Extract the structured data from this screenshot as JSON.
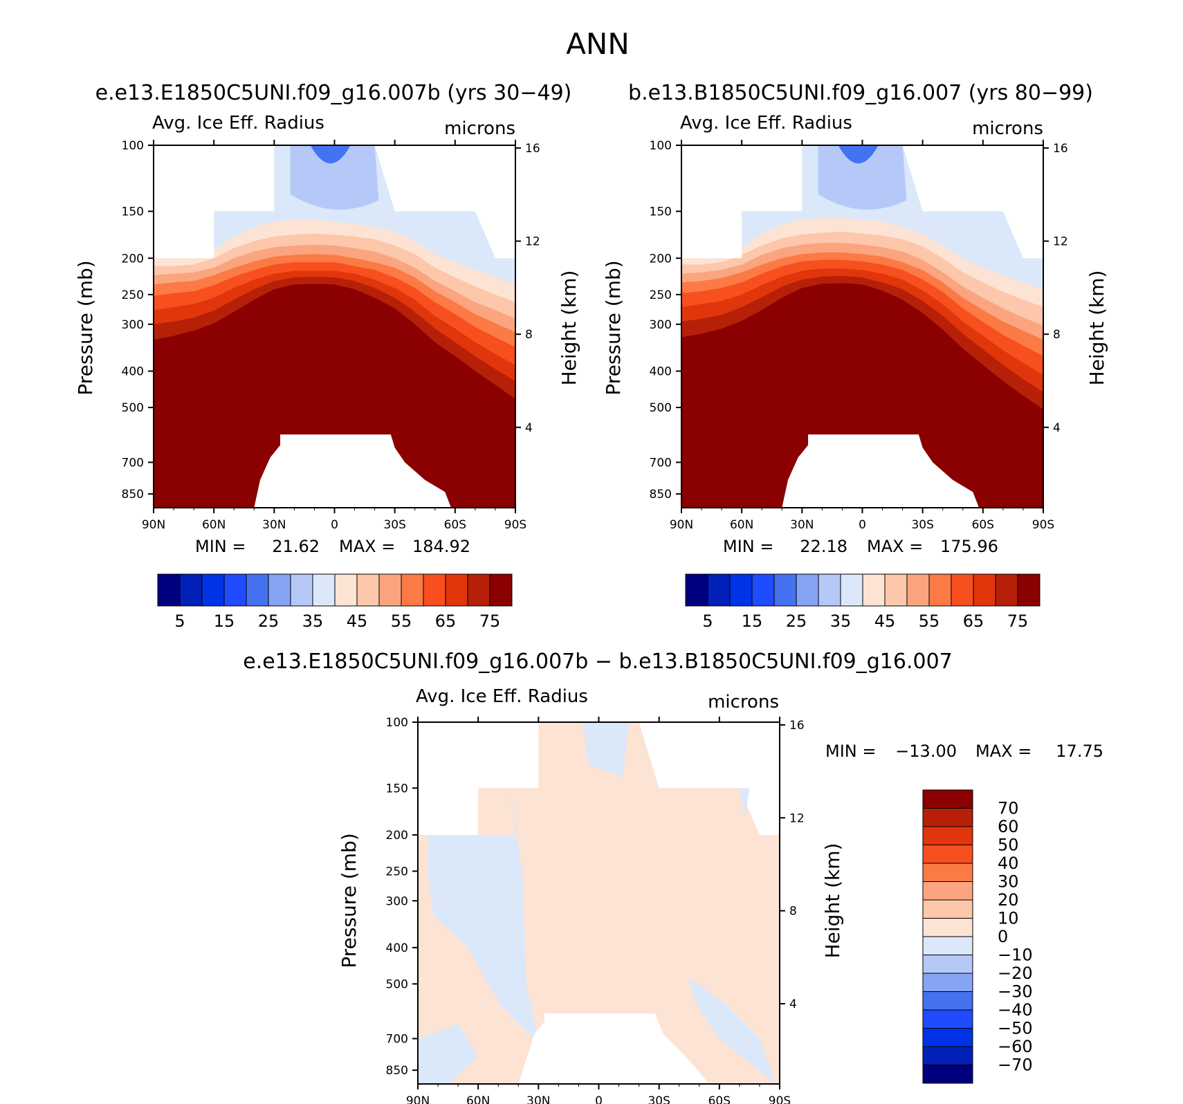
{
  "title": "ANN",
  "colors": {
    "abs_palette": [
      "#00007f",
      "#0020b8",
      "#0033e6",
      "#1f4cff",
      "#4472f0",
      "#85a4f4",
      "#b5c8f8",
      "#dae8fa",
      "#fde3d3",
      "#fcc7ab",
      "#faa580",
      "#fb7a45",
      "#f84f1f",
      "#e1350b",
      "#b62008",
      "#8b0000"
    ],
    "diff_palette": [
      "#00007f",
      "#0020b8",
      "#0033e6",
      "#1f4cff",
      "#4472f0",
      "#85a4f4",
      "#b5c8f8",
      "#dae8fa",
      "#fde3d3",
      "#fcc7ab",
      "#faa580",
      "#fb7a45",
      "#f84f1f",
      "#e1350b",
      "#b62008",
      "#8b0000"
    ]
  },
  "panels": [
    {
      "run_title": "e.e13.E1850C5UNI.f09_g16.007b (yrs 30−49)",
      "left_label": "Avg. Ice Eff. Radius",
      "right_label": "microns",
      "ylabel": "Pressure (mb)",
      "ylabel2": "Height (km)",
      "stats": {
        "min_label": "MIN =",
        "min": "21.62",
        "max_label": "MAX =",
        "max": "184.92"
      }
    },
    {
      "run_title": "b.e13.B1850C5UNI.f09_g16.007 (yrs 80−99)",
      "left_label": "Avg. Ice Eff. Radius",
      "right_label": "microns",
      "ylabel": "Pressure (mb)",
      "ylabel2": "Height (km)",
      "stats": {
        "min_label": "MIN =",
        "min": "22.18",
        "max_label": "MAX =",
        "max": "175.96"
      }
    },
    {
      "run_title": "e.e13.E1850C5UNI.f09_g16.007b − b.e13.B1850C5UNI.f09_g16.007",
      "left_label": "Avg. Ice Eff. Radius",
      "right_label": "microns",
      "ylabel": "Pressure (mb)",
      "ylabel2": "Height (km)",
      "stats": {
        "min_label": "MIN =",
        "min": "−13.00",
        "max_label": "MAX =",
        "max": "17.75"
      }
    }
  ],
  "chart_data": [
    {
      "type": "heatmap",
      "title": "e.e13.E1850C5UNI.f09_g16.007b (yrs 30−49)",
      "variable": "Avg. Ice Eff. Radius",
      "units": "microns",
      "xlabel": "",
      "ylabel": "Pressure (mb)",
      "ylabel_right": "Height (km)",
      "x_ticks": [
        "90N",
        "60N",
        "30N",
        "0",
        "30S",
        "60S",
        "90S"
      ],
      "y_ticks": [
        100,
        150,
        200,
        250,
        300,
        400,
        500,
        700,
        850
      ],
      "y2_ticks": [
        16,
        12,
        8,
        4
      ],
      "min": 21.62,
      "max": 184.92,
      "colorbar_levels": [
        5,
        10,
        15,
        20,
        25,
        30,
        35,
        40,
        45,
        50,
        55,
        60,
        65,
        70,
        75
      ],
      "colorbar_labels": [
        "5",
        "15",
        "25",
        "35",
        "45",
        "55",
        "65",
        "75"
      ],
      "field": {
        "lat": [
          90,
          80,
          70,
          60,
          50,
          40,
          30,
          20,
          10,
          0,
          -10,
          -20,
          -30,
          -40,
          -50,
          -60,
          -70,
          -80,
          -90
        ],
        "top_p": [
          200,
          200,
          200,
          150,
          150,
          150,
          100,
          100,
          100,
          100,
          100,
          100,
          150,
          150,
          150,
          150,
          150,
          200,
          200
        ],
        "isolines_p": [
          {
            "lower": 40,
            "p": [
              200,
              200,
              200,
              190,
              175,
              165,
              160,
              158,
              158,
              160,
              162,
              165,
              170,
              180,
              195,
              205,
              215,
              225,
              235
            ]
          },
          {
            "lower": 45,
            "p": [
              210,
              210,
              208,
              200,
              188,
              180,
              175,
              173,
              172,
              173,
              175,
              178,
              185,
              195,
              212,
              225,
              238,
              250,
              262
            ]
          },
          {
            "lower": 50,
            "p": [
              222,
              220,
              218,
              212,
              200,
              192,
              187,
              185,
              184,
              185,
              188,
              192,
              200,
              212,
              230,
              245,
              262,
              275,
              290
            ]
          },
          {
            "lower": 55,
            "p": [
              235,
              232,
              230,
              222,
              212,
              204,
              198,
              196,
              195,
              196,
              200,
              205,
              212,
              225,
              245,
              262,
              282,
              298,
              315
            ]
          },
          {
            "lower": 60,
            "p": [
              252,
              248,
              245,
              236,
              224,
              215,
              208,
              205,
              205,
              205,
              210,
              215,
              225,
              240,
              262,
              282,
              305,
              325,
              345
            ]
          },
          {
            "lower": 65,
            "p": [
              275,
              270,
              265,
              255,
              240,
              228,
              220,
              216,
              216,
              216,
              220,
              228,
              240,
              258,
              285,
              308,
              335,
              360,
              385
            ]
          },
          {
            "lower": 70,
            "p": [
              300,
              295,
              288,
              276,
              258,
              242,
              230,
              225,
              224,
              225,
              230,
              240,
              255,
              278,
              308,
              335,
              365,
              395,
              425
            ]
          },
          {
            "lower": 75,
            "p": [
              330,
              322,
              312,
              298,
              278,
              258,
              242,
              235,
              234,
              235,
              242,
              255,
              272,
              300,
              335,
              365,
              400,
              435,
              475
            ]
          }
        ],
        "low_clear": {
          "lat_range": [
            -28,
            27
          ],
          "top_p": 590,
          "edge_lats": [
            40,
            37,
            32,
            30,
            -30,
            -35,
            -45,
            -55
          ],
          "edge_p": [
            840,
            780,
            700,
            640,
            640,
            700,
            780,
            840
          ]
        }
      }
    },
    {
      "type": "heatmap",
      "title": "b.e13.B1850C5UNI.f09_g16.007 (yrs 80−99)",
      "variable": "Avg. Ice Eff. Radius",
      "units": "microns",
      "xlabel": "",
      "ylabel": "Pressure (mb)",
      "ylabel_right": "Height (km)",
      "x_ticks": [
        "90N",
        "60N",
        "30N",
        "0",
        "30S",
        "60S",
        "90S"
      ],
      "y_ticks": [
        100,
        150,
        200,
        250,
        300,
        400,
        500,
        700,
        850
      ],
      "y2_ticks": [
        16,
        12,
        8,
        4
      ],
      "min": 22.18,
      "max": 175.96,
      "colorbar_levels": [
        5,
        10,
        15,
        20,
        25,
        30,
        35,
        40,
        45,
        50,
        55,
        60,
        65,
        70,
        75
      ],
      "colorbar_labels": [
        "5",
        "15",
        "25",
        "35",
        "45",
        "55",
        "65",
        "75"
      ],
      "field": {
        "lat": [
          90,
          80,
          70,
          60,
          50,
          40,
          30,
          20,
          10,
          0,
          -10,
          -20,
          -30,
          -40,
          -50,
          -60,
          -70,
          -80,
          -90
        ],
        "top_p": [
          200,
          200,
          200,
          150,
          150,
          150,
          100,
          100,
          100,
          100,
          100,
          100,
          150,
          150,
          150,
          150,
          150,
          200,
          200
        ],
        "isolines_p": [
          {
            "lower": 40,
            "p": [
              200,
              200,
              200,
              188,
              172,
              162,
              158,
              156,
              156,
              158,
              160,
              165,
              172,
              185,
              200,
              212,
              222,
              232,
              242
            ]
          },
          {
            "lower": 45,
            "p": [
              208,
              208,
              205,
              196,
              185,
              177,
              173,
              171,
              170,
              172,
              174,
              178,
              186,
              200,
              218,
              232,
              246,
              258,
              270
            ]
          },
          {
            "lower": 50,
            "p": [
              220,
              218,
              215,
              208,
              196,
              188,
              184,
              182,
              182,
              184,
              187,
              192,
              202,
              218,
              238,
              255,
              272,
              288,
              302
            ]
          },
          {
            "lower": 55,
            "p": [
              232,
              230,
              226,
              218,
              208,
              200,
              195,
              193,
              193,
              195,
              198,
              205,
              215,
              232,
              255,
              275,
              295,
              312,
              330
            ]
          },
          {
            "lower": 60,
            "p": [
              248,
              245,
              240,
              232,
              220,
              210,
              204,
              202,
              202,
              204,
              208,
              215,
              228,
              246,
              272,
              296,
              320,
              342,
              365
            ]
          },
          {
            "lower": 65,
            "p": [
              270,
              265,
              260,
              250,
              236,
              224,
              216,
              213,
              213,
              215,
              220,
              228,
              244,
              265,
              295,
              322,
              352,
              380,
              410
            ]
          },
          {
            "lower": 70,
            "p": [
              295,
              290,
              283,
              270,
              254,
              238,
              228,
              224,
              223,
              225,
              232,
              242,
              260,
              285,
              318,
              350,
              385,
              420,
              455
            ]
          },
          {
            "lower": 75,
            "p": [
              325,
              318,
              308,
              294,
              275,
              255,
              240,
              234,
              233,
              235,
              244,
              258,
              280,
              310,
              348,
              385,
              425,
              465,
              505
            ]
          }
        ],
        "low_clear": {
          "lat_range": [
            -28,
            27
          ],
          "top_p": 590,
          "edge_lats": [
            40,
            37,
            32,
            30,
            -30,
            -35,
            -45,
            -55
          ],
          "edge_p": [
            840,
            780,
            700,
            640,
            640,
            700,
            780,
            840
          ]
        }
      }
    },
    {
      "type": "heatmap",
      "title": "e.e13.E1850C5UNI.f09_g16.007b − b.e13.B1850C5UNI.f09_g16.007",
      "variable": "Avg. Ice Eff. Radius",
      "units": "microns",
      "xlabel": "",
      "ylabel": "Pressure (mb)",
      "ylabel_right": "Height (km)",
      "x_ticks": [
        "90N",
        "60N",
        "30N",
        "0",
        "30S",
        "60S",
        "90S"
      ],
      "y_ticks": [
        100,
        150,
        200,
        250,
        300,
        400,
        500,
        700,
        850
      ],
      "y2_ticks": [
        16,
        12,
        8,
        4
      ],
      "min": -13.0,
      "max": 17.75,
      "colorbar_levels": [
        -70,
        -60,
        -50,
        -40,
        -30,
        -20,
        -10,
        0,
        10,
        20,
        30,
        40,
        50,
        60,
        70
      ],
      "colorbar_labels": [
        "70",
        "60",
        "50",
        "40",
        "30",
        "20",
        "10",
        "0",
        "−10",
        "−20",
        "−30",
        "−40",
        "−50",
        "−60",
        "−70"
      ],
      "field": {
        "lat": [
          90,
          80,
          70,
          60,
          50,
          40,
          30,
          20,
          10,
          0,
          -10,
          -20,
          -30,
          -40,
          -50,
          -60,
          -70,
          -80,
          -90
        ],
        "top_p": [
          200,
          200,
          200,
          150,
          150,
          150,
          100,
          100,
          100,
          100,
          100,
          100,
          150,
          150,
          150,
          150,
          150,
          200,
          200
        ],
        "description": "mostly 0 to 10 (light peach) with −10 to 0 (light blue) patches",
        "low_clear": {
          "lat_range": [
            -28,
            27
          ],
          "top_p": 600
        }
      }
    }
  ]
}
